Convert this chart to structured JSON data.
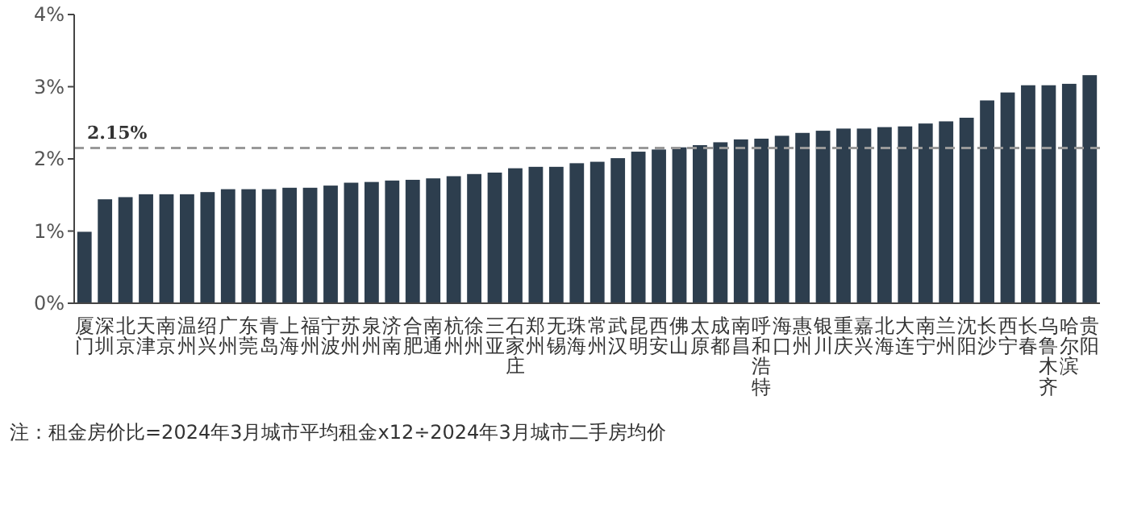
{
  "chart_data": {
    "type": "bar",
    "categories": [
      "厦门",
      "深圳",
      "北京",
      "天津",
      "南京",
      "温州",
      "绍兴",
      "广州",
      "东莞",
      "青岛",
      "上海",
      "福州",
      "宁波",
      "苏州",
      "泉州",
      "济南",
      "合肥",
      "南通",
      "杭州",
      "徐州",
      "三亚",
      "石家庄",
      "郑州",
      "无锡",
      "珠海",
      "常州",
      "武汉",
      "昆明",
      "西安",
      "佛山",
      "太原",
      "成都",
      "南昌",
      "呼和浩特",
      "海口",
      "惠州",
      "银川",
      "重庆",
      "嘉兴",
      "北海",
      "大连",
      "南宁",
      "兰州",
      "沈阳",
      "长沙",
      "西宁",
      "长春",
      "乌鲁木齐",
      "哈尔滨",
      "贵阳"
    ],
    "values": [
      0.99,
      1.44,
      1.47,
      1.51,
      1.51,
      1.51,
      1.54,
      1.58,
      1.58,
      1.58,
      1.6,
      1.6,
      1.63,
      1.67,
      1.68,
      1.7,
      1.71,
      1.73,
      1.76,
      1.79,
      1.81,
      1.87,
      1.89,
      1.89,
      1.94,
      1.96,
      2.01,
      2.1,
      2.13,
      2.16,
      2.19,
      2.23,
      2.27,
      2.28,
      2.32,
      2.36,
      2.39,
      2.42,
      2.42,
      2.44,
      2.45,
      2.49,
      2.52,
      2.57,
      2.81,
      2.92,
      3.02,
      3.02,
      3.04,
      3.16
    ],
    "color": "#2d3e4e",
    "ylim": [
      0,
      4
    ],
    "yticks": [
      {
        "value": 0,
        "label": "0%"
      },
      {
        "value": 1,
        "label": "1%"
      },
      {
        "value": 2,
        "label": "2%"
      },
      {
        "value": 3,
        "label": "3%"
      },
      {
        "value": 4,
        "label": "4%"
      }
    ],
    "grid": false,
    "ref_lines": [
      {
        "axis": "y",
        "value": 2.15,
        "label": "2.15%",
        "color": "#999999",
        "line_style": "dashed"
      }
    ],
    "annotations": [
      "注：租金房价比=2024年3月城市平均租金x12÷2024年3月城市二手房均价"
    ]
  }
}
